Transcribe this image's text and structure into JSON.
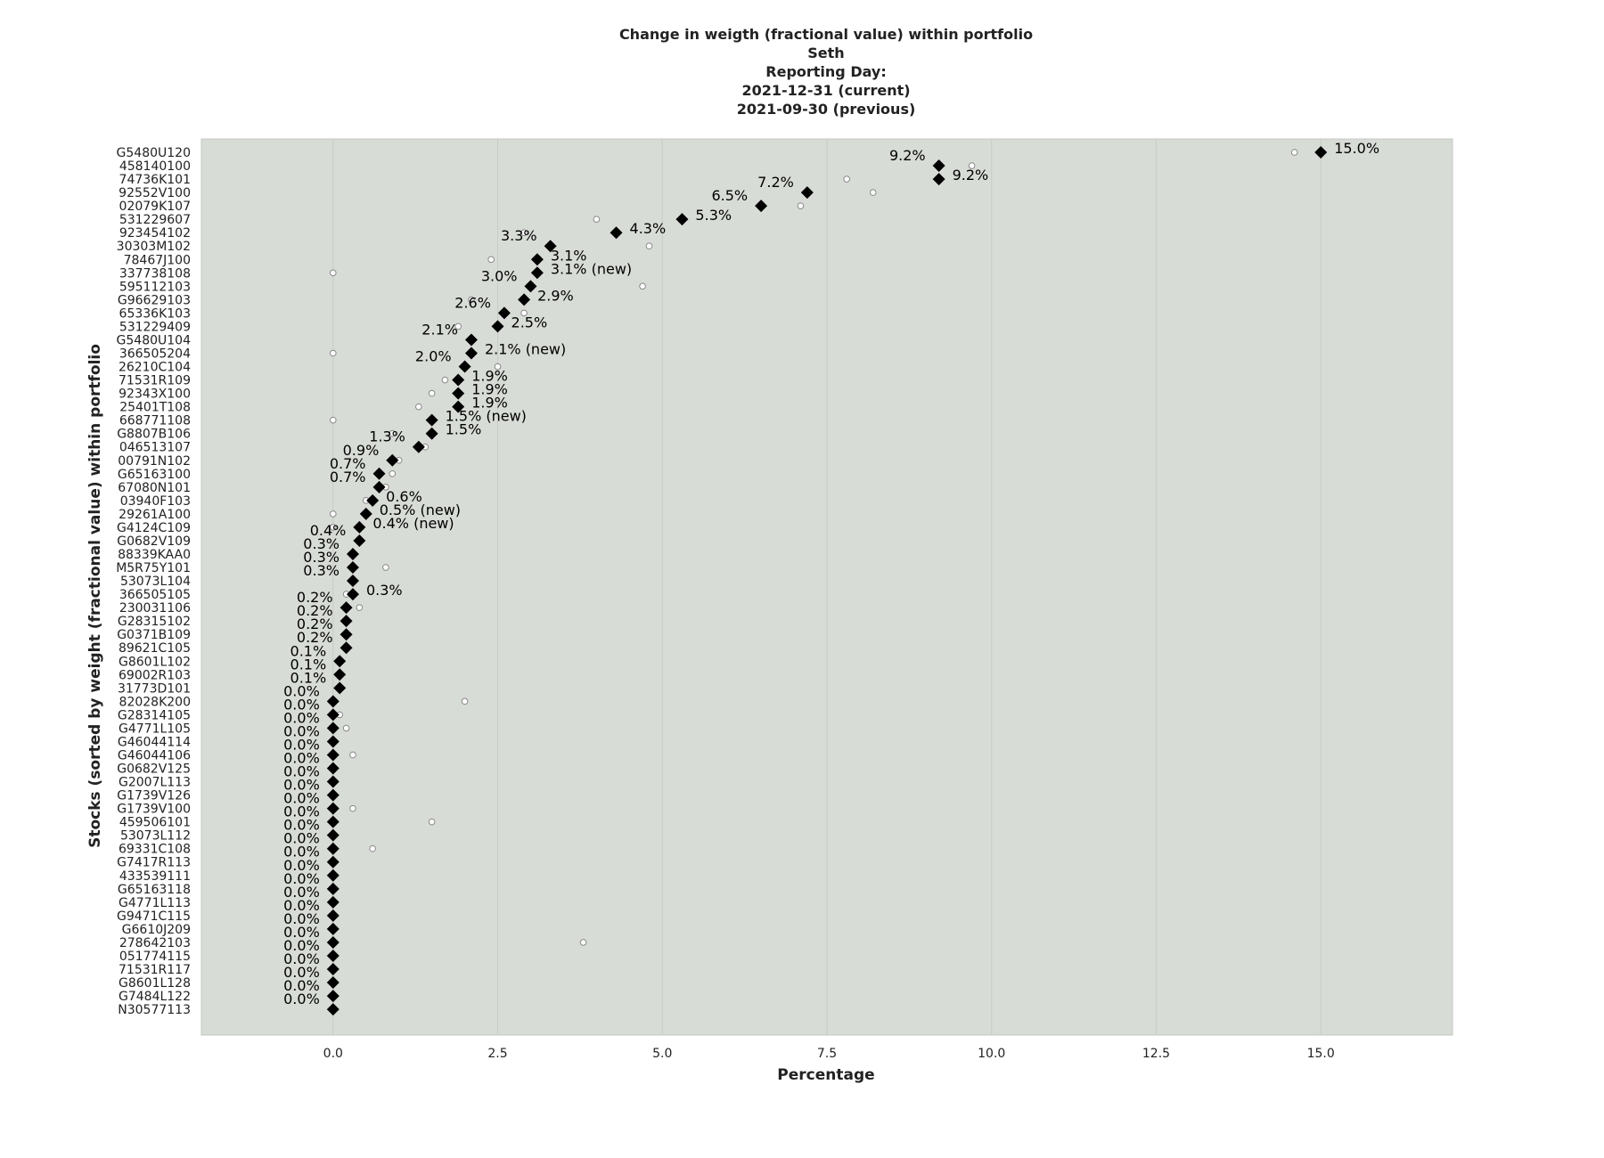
{
  "chart_data": {
    "type": "scatter",
    "title": [
      "Change in weigth (fractional value) within portfolio",
      "Seth",
      "Reporting Day:",
      "2021-12-31 (current)",
      "2021-09-30 (previous)"
    ],
    "xlabel": "Percentage",
    "ylabel": "Stocks (sorted by weight (fractional value) within portfolio",
    "xlim": [
      -2.0,
      17.0
    ],
    "xticks": [
      0.0,
      2.5,
      5.0,
      7.5,
      10.0,
      12.5,
      15.0
    ],
    "xtick_labels": [
      "0.0",
      "2.5",
      "5.0",
      "7.5",
      "10.0",
      "12.5",
      "15.0"
    ],
    "grid": true,
    "colors": {
      "plot_bg": "#d8dcd6",
      "grid": "#c8ccc6",
      "current_marker": "#000000",
      "previous_marker": "#ffffff"
    },
    "series": [
      {
        "name": "current",
        "marker": "diamond"
      },
      {
        "name": "previous",
        "marker": "circle"
      }
    ],
    "stocks": [
      {
        "id": "G5480U120",
        "current": 15.0,
        "previous": 14.6,
        "label": "15.0%",
        "side": "right"
      },
      {
        "id": "458140100",
        "current": 9.2,
        "previous": 9.7,
        "label": "9.2%",
        "side": "left"
      },
      {
        "id": "74736K101",
        "current": 9.2,
        "previous": 7.8,
        "label": "9.2%",
        "side": "right"
      },
      {
        "id": "92552V100",
        "current": 7.2,
        "previous": 8.2,
        "label": "7.2%",
        "side": "left"
      },
      {
        "id": "02079K107",
        "current": 6.5,
        "previous": 7.1,
        "label": "6.5%",
        "side": "left"
      },
      {
        "id": "531229607",
        "current": 5.3,
        "previous": 4.0,
        "label": "5.3%",
        "side": "right"
      },
      {
        "id": "923454102",
        "current": 4.3,
        "previous": 2.9,
        "label": "4.3%",
        "side": "right"
      },
      {
        "id": "30303M102",
        "current": 3.3,
        "previous": 4.8,
        "label": "3.3%",
        "side": "left"
      },
      {
        "id": "78467J100",
        "current": 3.1,
        "previous": 2.4,
        "label": "3.1%",
        "side": "right"
      },
      {
        "id": "337738108",
        "current": 3.1,
        "previous": 0.0,
        "label": "3.1% (new)",
        "side": "right"
      },
      {
        "id": "595112103",
        "current": 3.0,
        "previous": 4.7,
        "label": "3.0%",
        "side": "left"
      },
      {
        "id": "G96629103",
        "current": 2.9,
        "previous": 2.1,
        "label": "2.9%",
        "side": "right"
      },
      {
        "id": "65336K103",
        "current": 2.6,
        "previous": 2.9,
        "label": "2.6%",
        "side": "left"
      },
      {
        "id": "531229409",
        "current": 2.5,
        "previous": 1.9,
        "label": "2.5%",
        "side": "right"
      },
      {
        "id": "G5480U104",
        "current": 2.1,
        "previous": 2.1,
        "label": "2.1%",
        "side": "left"
      },
      {
        "id": "366505204",
        "current": 2.1,
        "previous": 0.0,
        "label": "2.1% (new)",
        "side": "right"
      },
      {
        "id": "26210C104",
        "current": 2.0,
        "previous": 2.5,
        "label": "2.0%",
        "side": "left"
      },
      {
        "id": "71531R109",
        "current": 1.9,
        "previous": 1.7,
        "label": "1.9%",
        "side": "right"
      },
      {
        "id": "92343X100",
        "current": 1.9,
        "previous": 1.5,
        "label": "1.9%",
        "side": "right"
      },
      {
        "id": "25401T108",
        "current": 1.9,
        "previous": 1.3,
        "label": "1.9%",
        "side": "right"
      },
      {
        "id": "668771108",
        "current": 1.5,
        "previous": 0.0,
        "label": "1.5% (new)",
        "side": "right"
      },
      {
        "id": "G8807B106",
        "current": 1.5,
        "previous": 0.9,
        "label": "1.5%",
        "side": "right"
      },
      {
        "id": "046513107",
        "current": 1.3,
        "previous": 1.4,
        "label": "1.3%",
        "side": "left"
      },
      {
        "id": "00791N102",
        "current": 0.9,
        "previous": 1.0,
        "label": "0.9%",
        "side": "left"
      },
      {
        "id": "G65163100",
        "current": 0.7,
        "previous": 0.9,
        "label": "0.7%",
        "side": "left"
      },
      {
        "id": "67080N101",
        "current": 0.7,
        "previous": 0.8,
        "label": "0.7%",
        "side": "left"
      },
      {
        "id": "03940F103",
        "current": 0.6,
        "previous": 0.5,
        "label": "0.6%",
        "side": "right"
      },
      {
        "id": "29261A100",
        "current": 0.5,
        "previous": 0.0,
        "label": "0.5% (new)",
        "side": "right"
      },
      {
        "id": "G4124C109",
        "current": 0.4,
        "previous": 0.0,
        "label": "0.4% (new)",
        "side": "right"
      },
      {
        "id": "G0682V109",
        "current": 0.4,
        "previous": 0.4,
        "label": "0.4%",
        "side": "left"
      },
      {
        "id": "88339KAA0",
        "current": 0.3,
        "previous": 0.3,
        "label": "0.3%",
        "side": "left"
      },
      {
        "id": "M5R75Y101",
        "current": 0.3,
        "previous": 0.8,
        "label": "0.3%",
        "side": "left"
      },
      {
        "id": "53073L104",
        "current": 0.3,
        "previous": 0.3,
        "label": "0.3%",
        "side": "left"
      },
      {
        "id": "366505105",
        "current": 0.3,
        "previous": 0.2,
        "label": "0.3%",
        "side": "right"
      },
      {
        "id": "230031106",
        "current": 0.2,
        "previous": 0.4,
        "label": "0.2%",
        "side": "left"
      },
      {
        "id": "G28315102",
        "current": 0.2,
        "previous": 0.2,
        "label": "0.2%",
        "side": "left"
      },
      {
        "id": "G0371B109",
        "current": 0.2,
        "previous": 0.2,
        "label": "0.2%",
        "side": "left"
      },
      {
        "id": "89621C105",
        "current": 0.2,
        "previous": 0.2,
        "label": "0.2%",
        "side": "left"
      },
      {
        "id": "G8601L102",
        "current": 0.1,
        "previous": 0.1,
        "label": "0.1%",
        "side": "left"
      },
      {
        "id": "69002R103",
        "current": 0.1,
        "previous": 0.1,
        "label": "0.1%",
        "side": "left"
      },
      {
        "id": "31773D101",
        "current": 0.1,
        "previous": 0.1,
        "label": "0.1%",
        "side": "left"
      },
      {
        "id": "82028K200",
        "current": 0.0,
        "previous": 2.0,
        "label": "0.0%",
        "side": "left"
      },
      {
        "id": "G28314105",
        "current": 0.0,
        "previous": 0.1,
        "label": "0.0%",
        "side": "left"
      },
      {
        "id": "G4771L105",
        "current": 0.0,
        "previous": 0.2,
        "label": "0.0%",
        "side": "left"
      },
      {
        "id": "G46044114",
        "current": 0.0,
        "previous": 0.0,
        "label": "0.0%",
        "side": "left"
      },
      {
        "id": "G46044106",
        "current": 0.0,
        "previous": 0.3,
        "label": "0.0%",
        "side": "left"
      },
      {
        "id": "G0682V125",
        "current": 0.0,
        "previous": 0.0,
        "label": "0.0%",
        "side": "left"
      },
      {
        "id": "G2007L113",
        "current": 0.0,
        "previous": 0.0,
        "label": "0.0%",
        "side": "left"
      },
      {
        "id": "G1739V126",
        "current": 0.0,
        "previous": 0.0,
        "label": "0.0%",
        "side": "left"
      },
      {
        "id": "G1739V100",
        "current": 0.0,
        "previous": 0.3,
        "label": "0.0%",
        "side": "left"
      },
      {
        "id": "459506101",
        "current": 0.0,
        "previous": 1.5,
        "label": "0.0%",
        "side": "left"
      },
      {
        "id": "53073L112",
        "current": 0.0,
        "previous": 0.0,
        "label": "0.0%",
        "side": "left"
      },
      {
        "id": "69331C108",
        "current": 0.0,
        "previous": 0.6,
        "label": "0.0%",
        "side": "left"
      },
      {
        "id": "G7417R113",
        "current": 0.0,
        "previous": 0.0,
        "label": "0.0%",
        "side": "left"
      },
      {
        "id": "433539111",
        "current": 0.0,
        "previous": 0.0,
        "label": "0.0%",
        "side": "left"
      },
      {
        "id": "G65163118",
        "current": 0.0,
        "previous": 0.0,
        "label": "0.0%",
        "side": "left"
      },
      {
        "id": "G4771L113",
        "current": 0.0,
        "previous": 0.0,
        "label": "0.0%",
        "side": "left"
      },
      {
        "id": "G9471C115",
        "current": 0.0,
        "previous": 0.0,
        "label": "0.0%",
        "side": "left"
      },
      {
        "id": "G6610J209",
        "current": 0.0,
        "previous": 0.0,
        "label": "0.0%",
        "side": "left"
      },
      {
        "id": "278642103",
        "current": 0.0,
        "previous": 3.8,
        "label": "0.0%",
        "side": "left"
      },
      {
        "id": "051774115",
        "current": 0.0,
        "previous": 0.0,
        "label": "0.0%",
        "side": "left"
      },
      {
        "id": "71531R117",
        "current": 0.0,
        "previous": 0.0,
        "label": "0.0%",
        "side": "left"
      },
      {
        "id": "G8601L128",
        "current": 0.0,
        "previous": 0.0,
        "label": "0.0%",
        "side": "left"
      },
      {
        "id": "G7484L122",
        "current": 0.0,
        "previous": 0.0,
        "label": "0.0%",
        "side": "left"
      },
      {
        "id": "N30577113",
        "current": 0.0,
        "previous": 0.0,
        "label": "0.0%",
        "side": "left"
      }
    ]
  }
}
